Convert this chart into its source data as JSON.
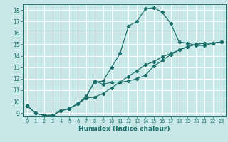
{
  "xlabel": "Humidex (Indice chaleur)",
  "bg_color": "#c8e8e8",
  "line_color": "#1a6e6a",
  "grid_color": "#ffffff",
  "xlim": [
    -0.5,
    23.5
  ],
  "ylim": [
    8.7,
    18.5
  ],
  "yticks": [
    9,
    10,
    11,
    12,
    13,
    14,
    15,
    16,
    17,
    18
  ],
  "xticks": [
    0,
    1,
    2,
    3,
    4,
    5,
    6,
    7,
    8,
    9,
    10,
    11,
    12,
    13,
    14,
    15,
    16,
    17,
    18,
    19,
    20,
    21,
    22,
    23
  ],
  "line1_x": [
    0,
    1,
    2,
    3,
    4,
    5,
    6,
    7,
    8,
    9,
    10,
    11,
    12,
    13,
    14,
    15,
    16,
    17,
    18,
    19,
    20,
    21,
    22,
    23
  ],
  "line1_y": [
    9.65,
    9.0,
    8.8,
    8.8,
    9.2,
    9.4,
    9.8,
    10.3,
    10.4,
    10.7,
    11.2,
    11.7,
    12.2,
    12.7,
    13.2,
    13.5,
    13.9,
    14.2,
    14.5,
    14.8,
    15.0,
    15.1,
    15.1,
    15.2
  ],
  "line2_x": [
    0,
    1,
    2,
    3,
    4,
    5,
    6,
    7,
    8,
    9,
    10,
    11,
    12,
    13,
    14,
    15,
    16,
    17,
    18,
    19,
    20,
    21,
    22,
    23
  ],
  "line2_y": [
    9.65,
    9.0,
    8.8,
    8.8,
    9.2,
    9.4,
    9.8,
    10.5,
    11.7,
    11.8,
    13.0,
    14.2,
    16.6,
    17.0,
    18.1,
    18.2,
    17.8,
    16.8,
    15.2,
    15.1,
    14.9,
    14.9,
    15.1,
    15.2
  ],
  "line3_x": [
    0,
    1,
    2,
    3,
    4,
    5,
    6,
    7,
    8,
    9,
    10,
    11,
    12,
    13,
    14,
    15,
    16,
    17,
    18,
    19,
    20,
    21,
    22,
    23
  ],
  "line3_y": [
    9.65,
    9.0,
    8.8,
    8.8,
    9.2,
    9.4,
    9.8,
    10.4,
    11.8,
    11.5,
    11.7,
    11.7,
    11.8,
    12.0,
    12.3,
    13.1,
    13.6,
    14.1,
    14.5,
    14.8,
    15.0,
    15.1,
    15.1,
    15.2
  ]
}
